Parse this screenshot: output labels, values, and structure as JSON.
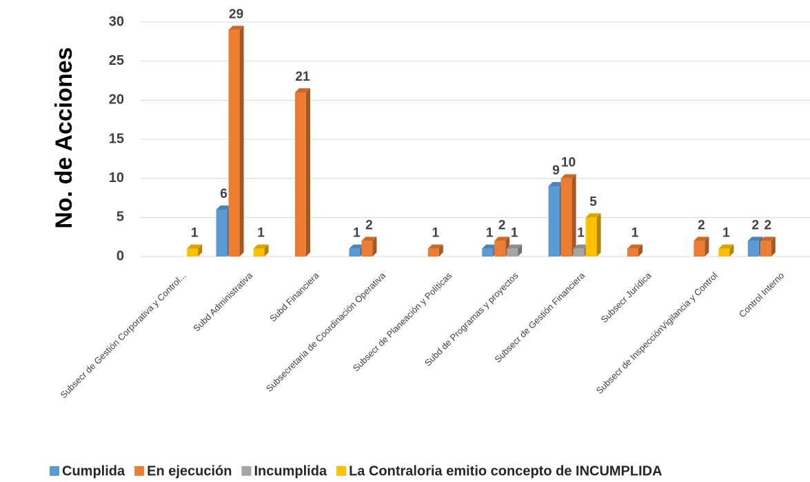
{
  "chart_data": {
    "type": "bar",
    "y_label": "No. de Acciones",
    "categories": [
      "Subsecr de Gestión Corporativa y Control...",
      "Subd Administrativa",
      "Subd Financiera",
      "Subsecretaria de Coordinación Operativa",
      "Subsecr de Planeación y Políticas",
      "Subd de Programas y proyectos",
      "Subsecr de Gestión Financiera",
      "Subsecr Jurídica",
      "Subsecr de InspecciónVigilancia y Control",
      "Control Interno"
    ],
    "series": [
      {
        "name": "Cumplida",
        "color": "#5b9bd5",
        "values": [
          null,
          6,
          null,
          1,
          null,
          1,
          9,
          null,
          null,
          2
        ]
      },
      {
        "name": "En ejecución",
        "color": "#ed7d31",
        "values": [
          null,
          29,
          21,
          2,
          1,
          2,
          10,
          1,
          2,
          2
        ]
      },
      {
        "name": "Incumplida",
        "color": "#a5a5a5",
        "values": [
          null,
          null,
          null,
          null,
          null,
          1,
          1,
          null,
          null,
          null
        ]
      },
      {
        "name": "La Contraloria emitio concepto de INCUMPLIDA",
        "color": "#ffc000",
        "values": [
          1,
          1,
          null,
          null,
          null,
          null,
          5,
          null,
          1,
          null
        ]
      }
    ],
    "ylim": [
      0,
      30
    ],
    "yticks": [
      0,
      5,
      10,
      15,
      20,
      25,
      30
    ],
    "grid": true,
    "legend": "bottom"
  }
}
